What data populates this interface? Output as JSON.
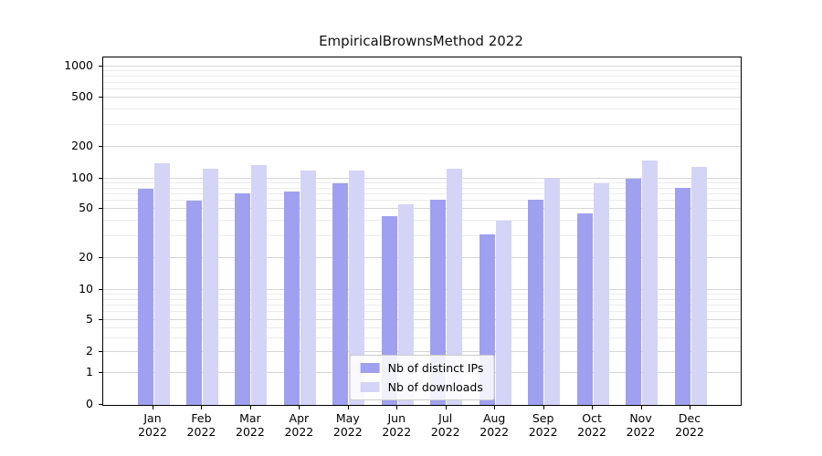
{
  "title": "EmpiricalBrownsMethod 2022",
  "chart_data": {
    "type": "bar",
    "scale": "symlog",
    "grid": true,
    "legend_position": "lower center",
    "categories": [
      "Jan",
      "Feb",
      "Mar",
      "Apr",
      "May",
      "Jun",
      "Jul",
      "Aug",
      "Sep",
      "Oct",
      "Nov",
      "Dec"
    ],
    "category_year": "2022",
    "yticks": [
      0,
      1,
      2,
      5,
      10,
      20,
      50,
      100,
      200,
      500,
      1000
    ],
    "ylim": [
      0,
      1200
    ],
    "series": [
      {
        "name": "Nb of distinct IPs",
        "color": "#a0a0f0",
        "values": [
          80,
          60,
          71,
          75,
          90,
          44,
          62,
          31,
          62,
          46,
          100,
          81
        ]
      },
      {
        "name": "Nb of downloads",
        "color": "#d4d4f7",
        "values": [
          140,
          125,
          135,
          120,
          120,
          55,
          125,
          40,
          102,
          90,
          150,
          130
        ]
      }
    ]
  }
}
